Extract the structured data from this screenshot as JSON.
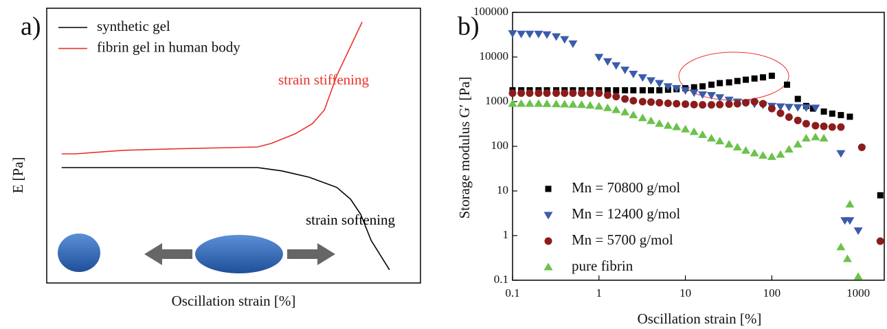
{
  "chart_data": [
    {
      "type": "line",
      "panel_label": "a)",
      "xlabel": "Oscillation strain [%]",
      "ylabel": "E [Pa]",
      "xlim": [
        0,
        100
      ],
      "ylim": [
        0,
        100
      ],
      "legend": "upper left",
      "series": [
        {
          "name": "synthetic gel",
          "color": "#000000",
          "x": [
            4.0,
            56.4,
            62.9,
            70.2,
            77.6,
            81.3,
            84.0,
            86.8,
            91.7
          ],
          "values": [
            42,
            42,
            40.8,
            38.5,
            34.8,
            30.5,
            25,
            15.5,
            4.8
          ]
        },
        {
          "name": "fibrin gel in human body",
          "color": "#e8332a",
          "x": [
            4.0,
            7.7,
            20.6,
            33.5,
            56.4,
            60.1,
            66.5,
            71.1,
            74.3,
            77.6,
            84.4
          ],
          "values": [
            47,
            47,
            48.3,
            48.8,
            49.5,
            50.8,
            54.3,
            58,
            63,
            75.5,
            95
          ]
        }
      ],
      "annotations": [
        {
          "text": "strain stiffening",
          "color": "#e8332a"
        },
        {
          "text": "strain softening",
          "color": "#000000"
        }
      ]
    },
    {
      "type": "scatter",
      "panel_label": "b)",
      "xlabel": "Oscillation strain [%]",
      "ylabel": "Storage modulus G′ [Pa]",
      "xlog": true,
      "ylog": true,
      "xlim": [
        0.1,
        2000
      ],
      "ylim": [
        0.1,
        100000
      ],
      "xticks": [
        0.1,
        1,
        10,
        100,
        1000
      ],
      "yticks": [
        0.1,
        1,
        10,
        100,
        1000,
        10000,
        100000
      ],
      "legend": "lower left",
      "series": [
        {
          "name": "Mn = 70800 g/mol",
          "color": "#000000",
          "marker": "square",
          "x": [
            0.1,
            0.126,
            0.158,
            0.2,
            0.25,
            0.32,
            0.4,
            0.5,
            0.63,
            0.79,
            1,
            1.26,
            1.58,
            2,
            2.5,
            3.2,
            4,
            5,
            6.3,
            7.9,
            10,
            12.6,
            15.8,
            20,
            25,
            32,
            40,
            50,
            63,
            79,
            100,
            150,
            200,
            250,
            300,
            400,
            500,
            630,
            800,
            1800
          ],
          "values": [
            1800,
            1800,
            1800,
            1800,
            1800,
            1800,
            1800,
            1800,
            1800,
            1800,
            1800,
            1800,
            1800,
            1800,
            1800,
            1800,
            1800,
            1800,
            1850,
            1900,
            2000,
            2100,
            2200,
            2400,
            2600,
            2700,
            2900,
            3100,
            3300,
            3500,
            3800,
            2400,
            1150,
            800,
            700,
            600,
            540,
            500,
            460,
            8
          ]
        },
        {
          "name": "Mn = 12400 g/mol",
          "color": "#3b5cab",
          "marker": "triangle-down",
          "x": [
            0.1,
            0.126,
            0.158,
            0.2,
            0.25,
            0.32,
            0.4,
            0.5,
            1,
            1.26,
            1.58,
            2,
            2.5,
            3.2,
            4,
            5,
            6.3,
            7.9,
            10,
            12.6,
            15.8,
            20,
            25,
            32,
            40,
            50,
            63,
            79,
            100,
            126,
            158,
            200,
            250,
            320,
            630,
            700,
            800,
            1000
          ],
          "values": [
            34000,
            33000,
            33000,
            33000,
            32000,
            29000,
            25000,
            20000,
            10000,
            8000,
            6500,
            5200,
            4200,
            3500,
            3000,
            2600,
            2200,
            2000,
            1800,
            1600,
            1450,
            1400,
            1250,
            1100,
            1000,
            950,
            900,
            850,
            800,
            780,
            760,
            750,
            740,
            730,
            70,
            2.2,
            2.2,
            1.3
          ]
        },
        {
          "name": "Mn = 5700 g/mol",
          "color": "#8c1c1c",
          "marker": "circle",
          "x": [
            0.1,
            0.126,
            0.158,
            0.2,
            0.25,
            0.32,
            0.4,
            0.5,
            0.63,
            0.79,
            1,
            1.26,
            1.58,
            2,
            2.5,
            3.2,
            4,
            5,
            6.3,
            7.9,
            10,
            12.6,
            15.8,
            20,
            25,
            32,
            40,
            50,
            63,
            79,
            100,
            126,
            158,
            200,
            250,
            320,
            400,
            500,
            630,
            1100,
            1800
          ],
          "values": [
            1550,
            1550,
            1550,
            1550,
            1550,
            1550,
            1550,
            1550,
            1550,
            1550,
            1550,
            1400,
            1300,
            1150,
            1050,
            1000,
            980,
            950,
            920,
            900,
            880,
            860,
            850,
            850,
            860,
            880,
            900,
            950,
            1000,
            900,
            700,
            550,
            450,
            380,
            320,
            290,
            280,
            270,
            270,
            95,
            0.75
          ]
        },
        {
          "name": "pure fibrin",
          "color": "#6cc24a",
          "marker": "triangle-up",
          "x": [
            0.1,
            0.126,
            0.158,
            0.2,
            0.25,
            0.32,
            0.4,
            0.5,
            0.63,
            0.79,
            1,
            1.26,
            1.58,
            2,
            2.5,
            3.2,
            4,
            5,
            6.3,
            7.9,
            10,
            12.6,
            15.8,
            20,
            25,
            32,
            40,
            50,
            63,
            79,
            100,
            126,
            158,
            200,
            250,
            320,
            400,
            630,
            750,
            800,
            1000
          ],
          "values": [
            900,
            900,
            900,
            900,
            890,
            880,
            870,
            860,
            850,
            820,
            780,
            720,
            650,
            580,
            500,
            430,
            370,
            320,
            290,
            270,
            240,
            210,
            180,
            150,
            130,
            110,
            95,
            80,
            70,
            62,
            58,
            65,
            85,
            110,
            150,
            160,
            150,
            0.55,
            0.3,
            5,
            0.12
          ]
        }
      ]
    }
  ]
}
